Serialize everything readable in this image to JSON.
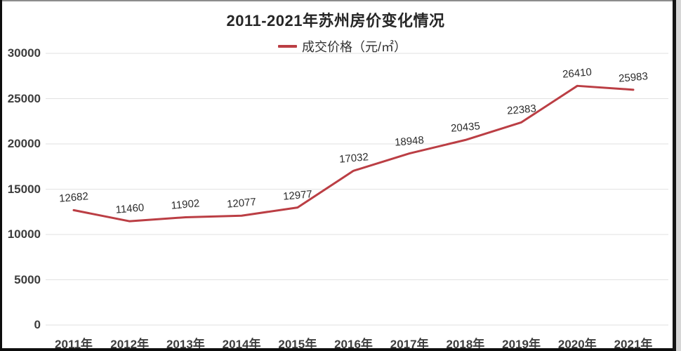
{
  "title": "2011-2021年苏州房价变化情况",
  "legend": {
    "label": "成交价格（元/㎡）"
  },
  "colors": {
    "line": "#bb3e44",
    "grid": "#e2e2e2",
    "axis_text": "#3d3d3d",
    "title_text": "#262626",
    "data_label_text": "#2b2b2b"
  },
  "chart_data": {
    "type": "line",
    "title": "2011-2021年苏州房价变化情况",
    "categories": [
      "2011年",
      "2012年",
      "2013年",
      "2014年",
      "2015年",
      "2016年",
      "2017年",
      "2018年",
      "2019年",
      "2020年",
      "2021年"
    ],
    "series": [
      {
        "name": "成交价格（元/㎡）",
        "values": [
          12682,
          11460,
          11902,
          12077,
          12977,
          17032,
          18948,
          20435,
          22383,
          26410,
          25983
        ]
      }
    ],
    "xlabel": "",
    "ylabel": "",
    "ylim": [
      0,
      30000
    ],
    "yticks": [
      0,
      5000,
      10000,
      15000,
      20000,
      25000,
      30000
    ],
    "grid": true,
    "legend_position": "top",
    "data_labels": true
  }
}
